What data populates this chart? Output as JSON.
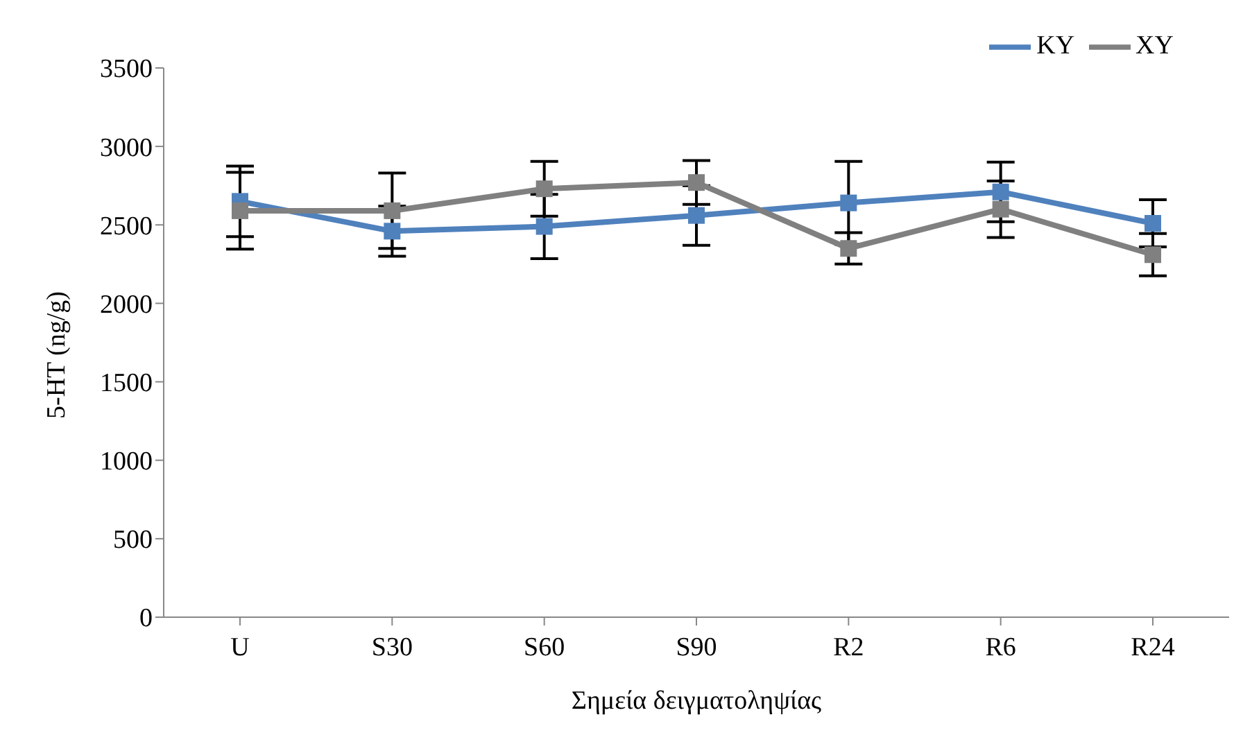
{
  "chart_data": {
    "type": "line",
    "xlabel": "Σημεία δειγματοληψίας",
    "ylabel": "5-HT (ng/g)",
    "categories": [
      "U",
      "S30",
      "S60",
      "S90",
      "R2",
      "R6",
      "R24"
    ],
    "series": [
      {
        "name": "KY",
        "color": "#4f81bd",
        "values": [
          2650,
          2460,
          2490,
          2560,
          2640,
          2710,
          2510
        ],
        "errors": [
          225,
          160,
          205,
          190,
          265,
          190,
          150
        ]
      },
      {
        "name": "XY",
        "color": "#808080",
        "values": [
          2590,
          2590,
          2730,
          2770,
          2350,
          2600,
          2310
        ],
        "errors": [
          245,
          240,
          175,
          140,
          100,
          180,
          135
        ]
      }
    ],
    "ylim": [
      0,
      3500
    ],
    "yticks": [
      0,
      500,
      1000,
      1500,
      2000,
      2500,
      3000,
      3500
    ],
    "grid": false,
    "legend": "top right",
    "marker": "square",
    "line_style": "solid"
  }
}
